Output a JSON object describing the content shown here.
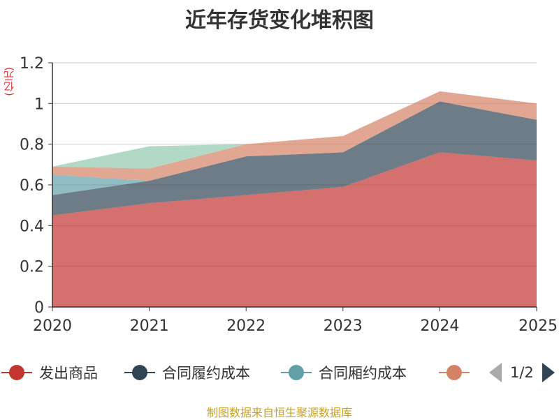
{
  "chart_data": {
    "type": "area",
    "stacked": true,
    "title": "近年存货变化堆积图",
    "yunit": "(亿元)",
    "x": [
      "2020",
      "2021",
      "2022",
      "2023",
      "2024",
      "2025"
    ],
    "ylim": [
      0,
      1.2
    ],
    "yticks": [
      "0",
      "0.2",
      "0.4",
      "0.6",
      "0.8",
      "1",
      "1.2"
    ],
    "grid": true,
    "legend_position": "bottom",
    "series": [
      {
        "name": "发出商品",
        "color": "#c23531",
        "values": [
          0.45,
          0.51,
          0.55,
          0.59,
          0.76,
          0.72
        ]
      },
      {
        "name": "合同履约成本",
        "color": "#2f4554",
        "values": [
          0.1,
          0.11,
          0.19,
          0.17,
          0.25,
          0.2
        ]
      },
      {
        "name": "合同厢约成本",
        "color": "#61a0a8",
        "values": [
          0.1,
          0.0,
          0.0,
          0.0,
          0.0,
          0.0
        ]
      },
      {
        "name": "",
        "color": "#d48265",
        "values": [
          0.04,
          0.06,
          0.06,
          0.08,
          0.05,
          0.08
        ]
      },
      {
        "name": "",
        "color": "#91c7ae",
        "values": [
          0.0,
          0.11,
          0.0,
          0.0,
          0.0,
          0.0
        ]
      }
    ]
  },
  "legend": {
    "items": [
      {
        "label": "发出商品",
        "color": "#c23531"
      },
      {
        "label": "合同履约成本",
        "color": "#2f4554"
      },
      {
        "label": "合同厢约成本",
        "color": "#61a0a8"
      },
      {
        "label": "",
        "color": "#d48265"
      }
    ],
    "pager": "1/2"
  },
  "footer": {
    "source": "制图数据来自恒生聚源数据库"
  }
}
